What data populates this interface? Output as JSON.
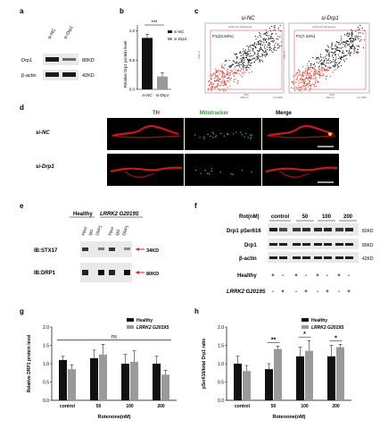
{
  "panel_labels": {
    "a": "a",
    "b": "b",
    "c": "c",
    "d": "d",
    "e": "e",
    "f": "f",
    "g": "g",
    "h": "h"
  },
  "panel_a": {
    "lanes": [
      "si-NC",
      "si-Drp1"
    ],
    "rows": [
      {
        "name": "Drp1",
        "kd": "80KD"
      },
      {
        "name": "β-actin",
        "kd": "42KD"
      }
    ]
  },
  "panel_b": {
    "ylabel": "Relative Drp1 protein level",
    "yticks": [
      "0.0",
      "0.5",
      "1.0"
    ],
    "categories": [
      "si-NC",
      "si-Drp1"
    ],
    "values": [
      0.88,
      0.22
    ],
    "ylim": [
      0,
      1.1
    ],
    "sig": "***",
    "legend": [
      "si-NC",
      "si-Drp1"
    ],
    "colors": {
      "si-NC": "#111111",
      "si-Drp1": "#9a9a9a"
    }
  },
  "panel_c": {
    "titles": [
      "si-NC",
      "si-Drp1"
    ],
    "gates": [
      "P1(22.64%)",
      "P1(7.44%)"
    ],
    "header": "si-NC.fcs  All Events",
    "xlabel": "SSC-A",
    "ylabel": "FSC-A",
    "xunit": "(x1,000)",
    "xtick": "500"
  },
  "panel_d": {
    "headers": [
      "TH",
      "Mitotracker",
      "Merge"
    ],
    "header_colors": [
      "#d21f1f",
      "#2e9a2e",
      "#000000"
    ],
    "rows": [
      "si-NC",
      "si-Drp1"
    ]
  },
  "panel_e": {
    "groups": [
      "Healthy",
      "LRRK2 G2019S"
    ],
    "lanes": [
      "Input",
      "IgG",
      "DRP1",
      "Input",
      "IgG",
      "DRP1"
    ],
    "rows": [
      {
        "name": "IB:STX17",
        "kd": "34KD"
      },
      {
        "name": "IB:DRP1",
        "kd": "80KD"
      }
    ]
  },
  "panel_f": {
    "rot_label": "Rot(nM)",
    "doses": [
      "control",
      "50",
      "100",
      "200"
    ],
    "rows": [
      {
        "name": "Drp1 pSer616",
        "kd": "82KD"
      },
      {
        "name": "Drp1",
        "kd": "80KD"
      },
      {
        "name": "β-actin",
        "kd": "42KD"
      }
    ],
    "conditions": [
      {
        "name": "Healthy",
        "signs": [
          "+",
          "-",
          "+",
          "-",
          "+",
          "-",
          "+",
          "-"
        ]
      },
      {
        "name": "LRRK2 G2019S",
        "signs": [
          "-",
          "+",
          "-",
          "+",
          "-",
          "+",
          "-",
          "+"
        ]
      }
    ]
  },
  "chart_data": [
    {
      "type": "bar",
      "panel": "b",
      "categories": [
        "si-NC",
        "si-Drp1"
      ],
      "values": [
        0.88,
        0.22
      ],
      "ylabel": "Relative Drp1 protein level",
      "ylim": [
        0,
        1.1
      ]
    },
    {
      "type": "bar",
      "panel": "g",
      "categories": [
        "control",
        "50",
        "100",
        "200"
      ],
      "series": [
        {
          "name": "Healthy",
          "values": [
            1.1,
            1.15,
            1.0,
            1.0
          ],
          "errors": [
            0.1,
            0.22,
            0.25,
            0.2
          ],
          "color": "#111111"
        },
        {
          "name": "LRRK2 G2019S",
          "values": [
            0.85,
            1.25,
            1.05,
            0.7
          ],
          "errors": [
            0.12,
            0.28,
            0.3,
            0.12
          ],
          "color": "#9a9a9a"
        }
      ],
      "xlabel": "Rotenone(nM)",
      "ylabel": "Relative DRP1 protein level",
      "ylim": [
        0,
        2.0
      ],
      "yticks": [
        "0.0",
        "0.5",
        "1.0",
        "1.5",
        "2.0"
      ],
      "sig": "ns",
      "legend": [
        "Healthy",
        "LRRK2 G2019S"
      ],
      "legend_position": "top-right"
    },
    {
      "type": "bar",
      "panel": "h",
      "categories": [
        "control",
        "50",
        "100",
        "200"
      ],
      "series": [
        {
          "name": "Healthy",
          "values": [
            1.0,
            0.85,
            1.2,
            1.2
          ],
          "errors": [
            0.2,
            0.15,
            0.25,
            0.3
          ],
          "color": "#111111"
        },
        {
          "name": "LRRK2 G2019S",
          "values": [
            0.8,
            1.4,
            1.35,
            1.45
          ],
          "errors": [
            0.15,
            0.08,
            0.28,
            0.08
          ],
          "color": "#9a9a9a"
        }
      ],
      "xlabel": "Rotenone(nM)",
      "ylabel": "pSer616/total Drp1 ratio",
      "ylim": [
        0,
        2.0
      ],
      "yticks": [
        "0.0",
        "0.5",
        "1.0",
        "1.5",
        "2.0"
      ],
      "sig": [
        "",
        "**",
        "*",
        "*"
      ],
      "legend": [
        "Healthy",
        "LRRK2 G2019S"
      ],
      "legend_position": "top-right"
    }
  ]
}
